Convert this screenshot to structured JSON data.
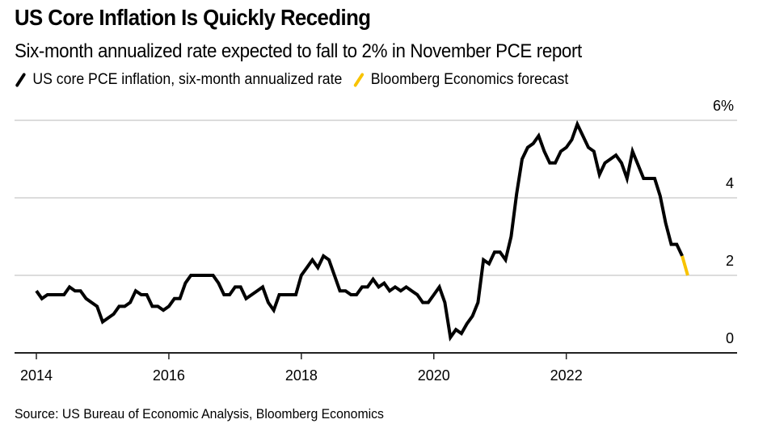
{
  "header": {
    "title": "US Core Inflation Is Quickly Receding",
    "subtitle": "Six-month annualized rate expected to fall to 2% in November PCE report"
  },
  "legend": [
    {
      "label": "US core PCE inflation, six-month annualized rate",
      "color": "#000000"
    },
    {
      "label": "Bloomberg Economics forecast",
      "color": "#F8C300"
    }
  ],
  "footer": {
    "source": "Source: US Bureau of Economic Analysis, Bloomberg Economics"
  },
  "chart_data": {
    "type": "line",
    "title": "US Core Inflation Is Quickly Receding",
    "subtitle": "Six-month annualized rate expected to fall to 2% in November PCE report",
    "xlabel": "",
    "ylabel": "",
    "x_start": "2014-01",
    "x_frequency": "monthly",
    "xlim": [
      "2013-09",
      "2024-10"
    ],
    "ylim": [
      0,
      6
    ],
    "yticks": [
      0,
      2,
      4,
      6
    ],
    "ytick_labels": [
      "0",
      "2",
      "4",
      "6%"
    ],
    "y_axis_side": "right",
    "xticks": [
      "2014",
      "2016",
      "2018",
      "2020",
      "2022"
    ],
    "grid": true,
    "legend_position": "top-left",
    "series": [
      {
        "name": "US core PCE inflation, six-month annualized rate",
        "color": "#000000",
        "start": "2014-01",
        "values": [
          1.6,
          1.4,
          1.5,
          1.5,
          1.5,
          1.5,
          1.7,
          1.6,
          1.6,
          1.4,
          1.3,
          1.2,
          0.8,
          0.9,
          1.0,
          1.2,
          1.2,
          1.3,
          1.6,
          1.5,
          1.5,
          1.2,
          1.2,
          1.1,
          1.2,
          1.4,
          1.4,
          1.8,
          2.0,
          2.0,
          2.0,
          2.0,
          2.0,
          1.8,
          1.5,
          1.5,
          1.7,
          1.7,
          1.4,
          1.5,
          1.6,
          1.7,
          1.3,
          1.1,
          1.5,
          1.5,
          1.5,
          1.5,
          2.0,
          2.2,
          2.4,
          2.2,
          2.5,
          2.4,
          2.0,
          1.6,
          1.6,
          1.5,
          1.5,
          1.7,
          1.7,
          1.9,
          1.7,
          1.8,
          1.6,
          1.7,
          1.6,
          1.7,
          1.6,
          1.5,
          1.3,
          1.3,
          1.5,
          1.7,
          1.3,
          0.4,
          0.6,
          0.5,
          0.75,
          0.95,
          1.3,
          2.4,
          2.3,
          2.6,
          2.6,
          2.4,
          3.0,
          4.1,
          5.0,
          5.3,
          5.4,
          5.6,
          5.2,
          4.9,
          4.9,
          5.2,
          5.3,
          5.5,
          5.9,
          5.6,
          5.3,
          5.2,
          4.6,
          4.9,
          5.0,
          5.1,
          4.9,
          4.5,
          5.2,
          4.85,
          4.5,
          4.5,
          4.5,
          4.05,
          3.35,
          2.8,
          2.8,
          2.5
        ]
      },
      {
        "name": "Bloomberg Economics forecast",
        "color": "#F8C300",
        "start": "2023-10",
        "values": [
          2.5,
          2.0
        ]
      }
    ]
  }
}
